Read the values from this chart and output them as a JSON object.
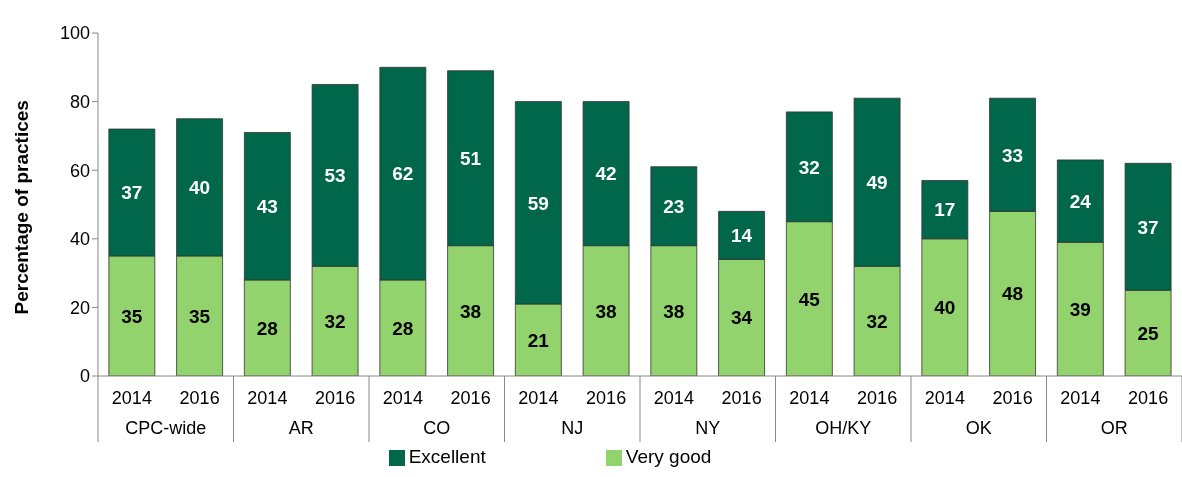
{
  "chart_data": {
    "type": "bar",
    "stacked": true,
    "ylabel": "Percentage of practices",
    "categories": [
      "2014",
      "2016",
      "2014",
      "2016",
      "2014",
      "2016",
      "2014",
      "2016",
      "2014",
      "2016",
      "2014",
      "2016",
      "2014",
      "2016",
      "2014",
      "2016"
    ],
    "annotations": [
      "CPC-wide",
      "AR",
      "CO",
      "NJ",
      "NY",
      "OH/KY",
      "OK",
      "OR"
    ],
    "series": [
      {
        "name": "Very good",
        "color": "#92d36e",
        "values": [
          35,
          35,
          28,
          32,
          28,
          38,
          21,
          38,
          38,
          34,
          45,
          32,
          40,
          48,
          39,
          25
        ]
      },
      {
        "name": "Excellent",
        "color": "#00674a",
        "values": [
          37,
          40,
          43,
          53,
          62,
          51,
          59,
          42,
          23,
          14,
          32,
          49,
          17,
          33,
          24,
          37
        ]
      }
    ],
    "ylim": [
      0,
      100
    ],
    "yticks": [
      0,
      20,
      40,
      60,
      80,
      100
    ],
    "data_labels": true,
    "legend": "bottom",
    "grid": false
  }
}
